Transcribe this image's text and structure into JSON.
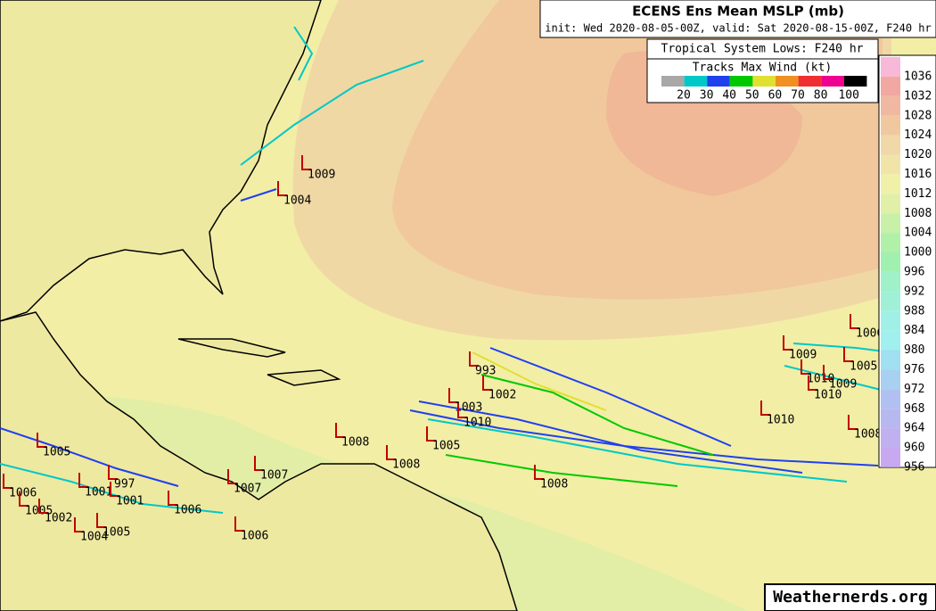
{
  "header": {
    "title": "ECENS Ens Mean MSLP (mb)",
    "subtitle": "init: Wed 2020-08-05-00Z, valid: Sat 2020-08-15-00Z, F240 hr"
  },
  "legend": {
    "title": "Tropical System Lows: F240 hr",
    "subtitle": "Tracks Max Wind (kt)",
    "wind_colors": [
      "#a8a8a8",
      "#00c8c8",
      "#2040f0",
      "#00c800",
      "#e0e030",
      "#f09020",
      "#f03030",
      "#f00090",
      "#000000"
    ],
    "wind_labels": [
      "20",
      "30",
      "40",
      "50",
      "60",
      "70",
      "80",
      "100"
    ]
  },
  "colorbar": {
    "labels": [
      "1036",
      "1032",
      "1028",
      "1024",
      "1020",
      "1016",
      "1012",
      "1008",
      "1004",
      "1000",
      "996",
      "992",
      "988",
      "984",
      "980",
      "976",
      "972",
      "968",
      "964",
      "960",
      "956"
    ],
    "colors": [
      "#f8b8d8",
      "#f0a8a0",
      "#f0b8a0",
      "#f0c8a0",
      "#f0d8a8",
      "#f0e4a8",
      "#f0f0a8",
      "#e0f0a8",
      "#c8f0a8",
      "#b0f0a8",
      "#a0f0b0",
      "#a0f0c8",
      "#a0f0d8",
      "#a0f0e8",
      "#a0f0f0",
      "#a0e0f0",
      "#a8d0f0",
      "#b0c0f0",
      "#b8b8f0",
      "#c0b0f0",
      "#c8a8f0"
    ]
  },
  "lows": [
    "1009",
    "1004",
    "993",
    "1002",
    "1003",
    "1010",
    "1005",
    "1008",
    "1008",
    "1008",
    "1007",
    "1007",
    "1006",
    "1006",
    "1005",
    "997",
    "1001",
    "1001",
    "1006",
    "1005",
    "1002",
    "1004",
    "1005",
    "1009",
    "1010",
    "1009",
    "1010",
    "1010",
    "1008",
    "1005",
    "1006"
  ],
  "watermark": "Weathernerds.org"
}
